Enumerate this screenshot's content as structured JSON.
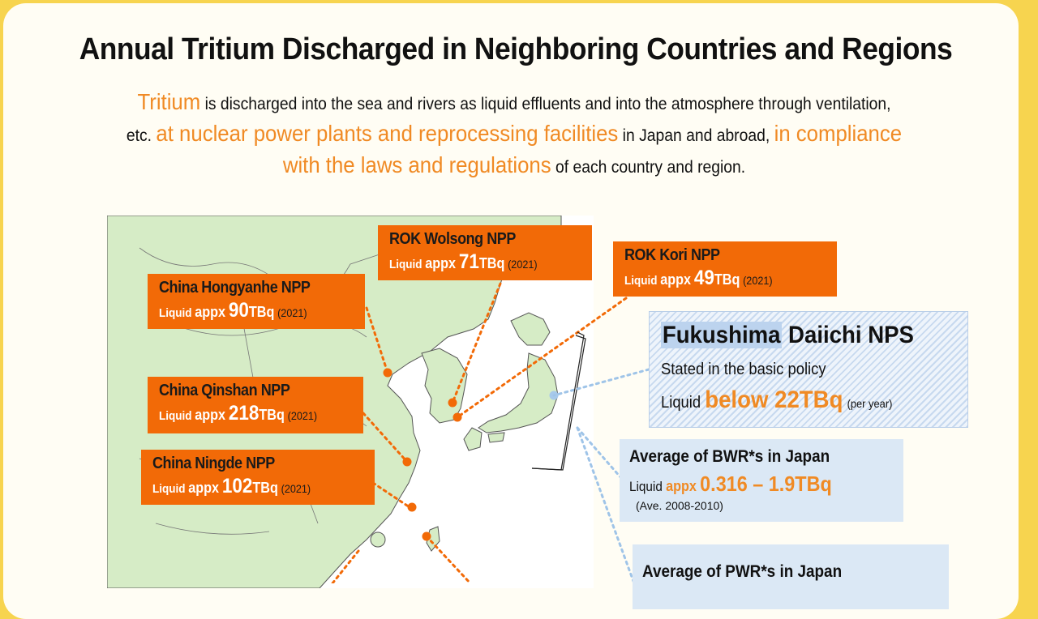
{
  "title": "Annual Tritium Discharged in Neighboring Countries and Regions",
  "intro": {
    "hl1": "Tritium",
    "t1": " is discharged into the sea and rivers as liquid effluents and into the atmosphere through ventilation,",
    "t2": "etc. ",
    "hl2": "at nuclear power plants and reprocessing facilities",
    "t3": " in Japan and abroad, ",
    "hl3": "in compliance",
    "hl4": "with the laws and regulations",
    "t4": " of each country and region."
  },
  "colors": {
    "background": "#f7d44f",
    "accent": "#f26a07",
    "highlight_text": "#f08a24",
    "land": "#d6ecc6",
    "sea": "#ffffff",
    "info_box": "#dbe8f5"
  },
  "plants": [
    {
      "id": "rok-wolsong",
      "name": "ROK Wolsong NPP",
      "liquid": "Liquid",
      "appx": "appx",
      "value": "71",
      "unit": "TBq",
      "year": "(2021)"
    },
    {
      "id": "rok-kori",
      "name": "ROK Kori NPP",
      "liquid": "Liquid",
      "appx": "appx",
      "value": "49",
      "unit": "TBq",
      "year": "(2021)"
    },
    {
      "id": "china-hongyanhe",
      "name": "China Hongyanhe NPP",
      "liquid": "Liquid",
      "appx": "appx",
      "value": "90",
      "unit": "TBq",
      "year": "(2021)"
    },
    {
      "id": "china-qinshan",
      "name": "China Qinshan NPP",
      "liquid": "Liquid",
      "appx": "appx",
      "value": "218",
      "unit": "TBq",
      "year": "(2021)"
    },
    {
      "id": "china-ningde",
      "name": "China Ningde NPP",
      "liquid": "Liquid",
      "appx": "appx",
      "value": "102",
      "unit": "TBq",
      "year": "(2021)"
    }
  ],
  "fukushima": {
    "plant": "Fukushima",
    "rest": " Daiichi NPS",
    "stated": "Stated in the basic policy",
    "liquid": "Liquid ",
    "value": "below 22TBq",
    "period": "(per year)"
  },
  "bwr": {
    "title": "Average of BWR*s in Japan",
    "liquid": "Liquid ",
    "appx": "appx",
    "value": "0.316 – 1.9TBq",
    "note": "(Ave. 2008-2010)"
  },
  "pwr": {
    "title": "Average of PWR*s in Japan"
  }
}
